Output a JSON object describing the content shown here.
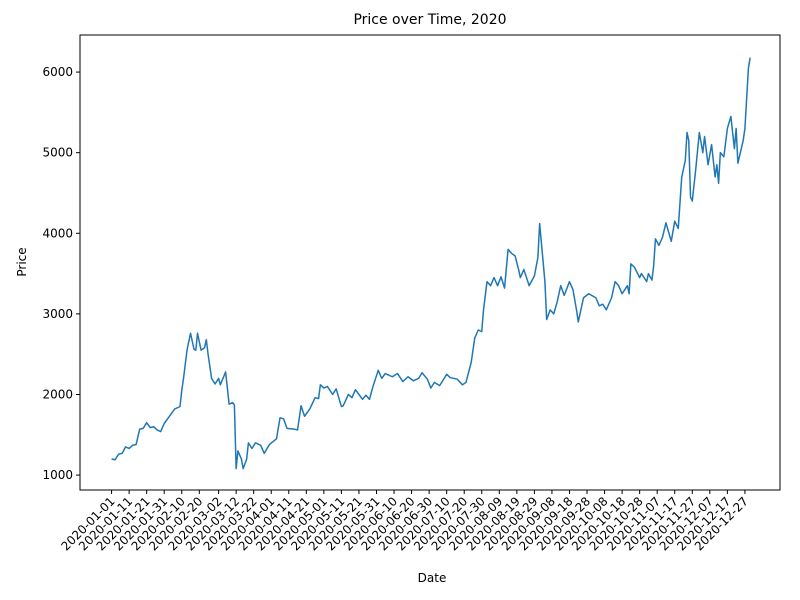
{
  "chart_data": {
    "type": "line",
    "title": "Price over Time, 2020",
    "xlabel": "Date",
    "ylabel": "Price",
    "color": "#1f77b4",
    "x": [
      "2020-01-01",
      "2020-01-03",
      "2020-01-05",
      "2020-01-07",
      "2020-01-09",
      "2020-01-11",
      "2020-01-13",
      "2020-01-15",
      "2020-01-17",
      "2020-01-19",
      "2020-01-21",
      "2020-01-23",
      "2020-01-25",
      "2020-01-27",
      "2020-01-29",
      "2020-01-31",
      "2020-02-02",
      "2020-02-04",
      "2020-02-06",
      "2020-02-08",
      "2020-02-09",
      "2020-02-10",
      "2020-02-11",
      "2020-02-13",
      "2020-02-15",
      "2020-02-17",
      "2020-02-18",
      "2020-02-19",
      "2020-02-21",
      "2020-02-23",
      "2020-02-24",
      "2020-02-25",
      "2020-02-27",
      "2020-02-29",
      "2020-03-02",
      "2020-03-03",
      "2020-03-06",
      "2020-03-08",
      "2020-03-10",
      "2020-03-11",
      "2020-03-12",
      "2020-03-13",
      "2020-03-15",
      "2020-03-16",
      "2020-03-18",
      "2020-03-19",
      "2020-03-21",
      "2020-03-23",
      "2020-03-26",
      "2020-03-28",
      "2020-03-31",
      "2020-04-04",
      "2020-04-06",
      "2020-04-08",
      "2020-04-10",
      "2020-04-14",
      "2020-04-16",
      "2020-04-18",
      "2020-04-20",
      "2020-04-23",
      "2020-04-26",
      "2020-04-28",
      "2020-04-29",
      "2020-05-01",
      "2020-05-03",
      "2020-05-06",
      "2020-05-08",
      "2020-05-11",
      "2020-05-12",
      "2020-05-15",
      "2020-05-17",
      "2020-05-19",
      "2020-05-21",
      "2020-05-23",
      "2020-05-25",
      "2020-05-27",
      "2020-05-29",
      "2020-06-01",
      "2020-06-03",
      "2020-06-05",
      "2020-06-09",
      "2020-06-12",
      "2020-06-15",
      "2020-06-18",
      "2020-06-21",
      "2020-06-24",
      "2020-06-26",
      "2020-06-29",
      "2020-07-01",
      "2020-07-03",
      "2020-07-06",
      "2020-07-10",
      "2020-07-12",
      "2020-07-16",
      "2020-07-19",
      "2020-07-21",
      "2020-07-24",
      "2020-07-26",
      "2020-07-28",
      "2020-07-30",
      "2020-07-31",
      "2020-08-02",
      "2020-08-04",
      "2020-08-06",
      "2020-08-08",
      "2020-08-10",
      "2020-08-12",
      "2020-08-14",
      "2020-08-16",
      "2020-08-18",
      "2020-08-20",
      "2020-08-21",
      "2020-08-23",
      "2020-08-26",
      "2020-08-29",
      "2020-08-31",
      "2020-09-01",
      "2020-09-04",
      "2020-09-05",
      "2020-09-07",
      "2020-09-09",
      "2020-09-11",
      "2020-09-13",
      "2020-09-15",
      "2020-09-18",
      "2020-09-20",
      "2020-09-22",
      "2020-09-23",
      "2020-09-26",
      "2020-09-29",
      "2020-10-03",
      "2020-10-05",
      "2020-10-07",
      "2020-10-09",
      "2020-10-12",
      "2020-10-14",
      "2020-10-16",
      "2020-10-18",
      "2020-10-21",
      "2020-10-22",
      "2020-10-23",
      "2020-10-25",
      "2020-10-28",
      "2020-10-29",
      "2020-11-01",
      "2020-11-02",
      "2020-11-04",
      "2020-11-05",
      "2020-11-06",
      "2020-11-08",
      "2020-11-10",
      "2020-11-12",
      "2020-11-15",
      "2020-11-17",
      "2020-11-19",
      "2020-11-21",
      "2020-11-23",
      "2020-11-24",
      "2020-11-25",
      "2020-11-26",
      "2020-11-27",
      "2020-11-29",
      "2020-12-01",
      "2020-12-03",
      "2020-12-04",
      "2020-12-06",
      "2020-12-08",
      "2020-12-10",
      "2020-12-11",
      "2020-12-12",
      "2020-12-13",
      "2020-12-15",
      "2020-12-17",
      "2020-12-19",
      "2020-12-21",
      "2020-12-22",
      "2020-12-23",
      "2020-12-26",
      "2020-12-27",
      "2020-12-29",
      "2020-12-30"
    ],
    "values": [
      1200,
      1190,
      1260,
      1270,
      1350,
      1330,
      1370,
      1380,
      1570,
      1580,
      1650,
      1590,
      1600,
      1560,
      1540,
      1640,
      1700,
      1760,
      1820,
      1840,
      1850,
      2050,
      2200,
      2550,
      2760,
      2560,
      2550,
      2760,
      2550,
      2580,
      2680,
      2500,
      2200,
      2130,
      2200,
      2120,
      2280,
      1880,
      1900,
      1870,
      1080,
      1300,
      1200,
      1080,
      1200,
      1400,
      1330,
      1400,
      1370,
      1270,
      1380,
      1450,
      1710,
      1700,
      1580,
      1570,
      1560,
      1860,
      1730,
      1820,
      1960,
      1950,
      2120,
      2080,
      2100,
      2000,
      2070,
      1850,
      1860,
      2000,
      1960,
      2060,
      2000,
      1940,
      1990,
      1940,
      2100,
      2300,
      2200,
      2260,
      2220,
      2260,
      2160,
      2220,
      2170,
      2200,
      2270,
      2190,
      2080,
      2150,
      2110,
      2250,
      2210,
      2190,
      2120,
      2150,
      2400,
      2700,
      2800,
      2780,
      3050,
      3400,
      3350,
      3450,
      3350,
      3460,
      3320,
      3800,
      3750,
      3720,
      3550,
      3450,
      3550,
      3350,
      3470,
      3700,
      4120,
      3400,
      2930,
      3050,
      3000,
      3150,
      3350,
      3230,
      3400,
      3300,
      3050,
      2900,
      3200,
      3250,
      3200,
      3100,
      3120,
      3050,
      3200,
      3400,
      3350,
      3250,
      3350,
      3250,
      3620,
      3580,
      3450,
      3500,
      3400,
      3500,
      3420,
      3600,
      3930,
      3850,
      3950,
      4130,
      3900,
      4150,
      4060,
      4700,
      4900,
      5250,
      5150,
      4450,
      4400,
      4800,
      5250,
      5000,
      5200,
      4850,
      5100,
      4700,
      4850,
      4620,
      5000,
      4950,
      5300,
      5450,
      5050,
      5300,
      4870,
      5150,
      5300,
      6050,
      6180
    ],
    "xlim": [
      "2019-12-14",
      "2021-01-16"
    ],
    "xticks": [
      "2020-01-01",
      "2020-01-11",
      "2020-01-21",
      "2020-01-31",
      "2020-02-10",
      "2020-02-20",
      "2020-03-02",
      "2020-03-12",
      "2020-03-22",
      "2020-04-01",
      "2020-04-11",
      "2020-04-21",
      "2020-05-01",
      "2020-05-11",
      "2020-05-21",
      "2020-05-31",
      "2020-06-10",
      "2020-06-20",
      "2020-06-30",
      "2020-07-10",
      "2020-07-20",
      "2020-07-30",
      "2020-08-09",
      "2020-08-19",
      "2020-08-29",
      "2020-09-08",
      "2020-09-18",
      "2020-09-28",
      "2020-10-08",
      "2020-10-18",
      "2020-10-28",
      "2020-11-07",
      "2020-11-17",
      "2020-11-27",
      "2020-12-07",
      "2020-12-17",
      "2020-12-27"
    ],
    "ylim": [
      815,
      6460
    ],
    "yticks": [
      1000,
      2000,
      3000,
      4000,
      5000,
      6000
    ]
  }
}
